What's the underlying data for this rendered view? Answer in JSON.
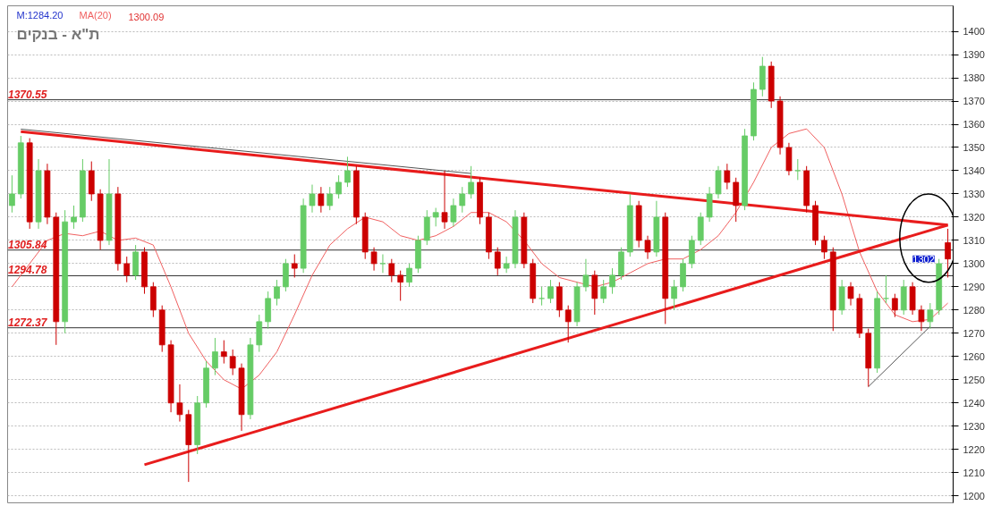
{
  "chart_data": {
    "type": "candlestick",
    "title": "ת\"א - בנקים",
    "annotations": [
      "M:1284.20",
      "1300.09",
      {
        "text": "1302",
        "y": 1302
      }
    ],
    "categories": [
      null,
      null,
      null,
      null,
      null,
      null,
      null,
      null,
      null,
      null,
      null,
      null,
      null,
      null,
      null,
      null,
      null,
      null,
      null,
      null,
      null,
      null,
      null,
      null,
      null,
      null,
      null,
      null,
      null,
      null,
      null,
      null,
      null,
      null,
      null,
      null,
      null,
      null,
      null,
      null,
      null,
      null,
      null,
      null,
      null,
      null,
      null,
      null,
      null,
      null,
      null,
      null,
      null,
      null,
      null,
      null,
      null,
      null,
      null,
      null,
      null,
      null,
      null,
      null,
      null,
      null,
      null,
      null,
      null,
      null,
      null,
      null,
      null,
      null,
      null,
      null,
      null,
      null,
      null,
      null,
      null,
      null,
      null,
      null,
      null,
      null,
      null,
      null,
      null,
      null,
      null,
      null,
      null,
      null,
      null,
      null,
      null,
      null,
      null,
      null,
      null,
      null,
      null,
      null,
      null,
      null,
      null
    ],
    "ohlc": [
      [
        1325,
        1338,
        1322,
        1330
      ],
      [
        1330,
        1355,
        1328,
        1352
      ],
      [
        1352,
        1354,
        1315,
        1318
      ],
      [
        1318,
        1345,
        1315,
        1340
      ],
      [
        1340,
        1343,
        1317,
        1320
      ],
      [
        1320,
        1322,
        1265,
        1275
      ],
      [
        1275,
        1323,
        1270,
        1318
      ],
      [
        1318,
        1325,
        1315,
        1320
      ],
      [
        1320,
        1345,
        1318,
        1340
      ],
      [
        1340,
        1344,
        1327,
        1330
      ],
      [
        1330,
        1332,
        1306,
        1310
      ],
      [
        1310,
        1345,
        1308,
        1330
      ],
      [
        1330,
        1333,
        1297,
        1300
      ],
      [
        1300,
        1303,
        1292,
        1295
      ],
      [
        1295,
        1308,
        1293,
        1305
      ],
      [
        1305,
        1307,
        1287,
        1290
      ],
      [
        1290,
        1292,
        1277,
        1280
      ],
      [
        1280,
        1282,
        1262,
        1265
      ],
      [
        1265,
        1267,
        1236,
        1240
      ],
      [
        1240,
        1248,
        1232,
        1235
      ],
      [
        1235,
        1237,
        1206,
        1222
      ],
      [
        1222,
        1243,
        1218,
        1240
      ],
      [
        1240,
        1258,
        1238,
        1255
      ],
      [
        1255,
        1268,
        1252,
        1262
      ],
      [
        1262,
        1267,
        1257,
        1260
      ],
      [
        1260,
        1263,
        1252,
        1255
      ],
      [
        1255,
        1257,
        1228,
        1235
      ],
      [
        1235,
        1268,
        1233,
        1265
      ],
      [
        1265,
        1278,
        1262,
        1275
      ],
      [
        1275,
        1288,
        1272,
        1285
      ],
      [
        1285,
        1293,
        1282,
        1290
      ],
      [
        1290,
        1302,
        1288,
        1300
      ],
      [
        1300,
        1304,
        1294,
        1298
      ],
      [
        1298,
        1328,
        1296,
        1325
      ],
      [
        1325,
        1334,
        1322,
        1330
      ],
      [
        1330,
        1333,
        1322,
        1325
      ],
      [
        1325,
        1333,
        1323,
        1330
      ],
      [
        1330,
        1338,
        1328,
        1335
      ],
      [
        1335,
        1346,
        1333,
        1340
      ],
      [
        1340,
        1342,
        1317,
        1320
      ],
      [
        1320,
        1322,
        1302,
        1305
      ],
      [
        1305,
        1307,
        1297,
        1300
      ],
      [
        1300,
        1304,
        1296,
        1300
      ],
      [
        1300,
        1302,
        1292,
        1295
      ],
      [
        1295,
        1297,
        1284,
        1292
      ],
      [
        1292,
        1300,
        1290,
        1298
      ],
      [
        1298,
        1312,
        1296,
        1310
      ],
      [
        1310,
        1323,
        1308,
        1320
      ],
      [
        1320,
        1324,
        1316,
        1322
      ],
      [
        1322,
        1340,
        1315,
        1318
      ],
      [
        1318,
        1328,
        1316,
        1325
      ],
      [
        1325,
        1333,
        1322,
        1330
      ],
      [
        1330,
        1342,
        1328,
        1335
      ],
      [
        1335,
        1337,
        1317,
        1320
      ],
      [
        1320,
        1322,
        1302,
        1305
      ],
      [
        1305,
        1307,
        1295,
        1298
      ],
      [
        1298,
        1303,
        1296,
        1300
      ],
      [
        1300,
        1323,
        1298,
        1320
      ],
      [
        1320,
        1322,
        1298,
        1300
      ],
      [
        1300,
        1302,
        1283,
        1285
      ],
      [
        1285,
        1290,
        1282,
        1285
      ],
      [
        1285,
        1293,
        1283,
        1290
      ],
      [
        1290,
        1292,
        1277,
        1280
      ],
      [
        1280,
        1282,
        1266,
        1275
      ],
      [
        1275,
        1292,
        1273,
        1290
      ],
      [
        1290,
        1302,
        1288,
        1295
      ],
      [
        1295,
        1297,
        1278,
        1285
      ],
      [
        1285,
        1293,
        1283,
        1290
      ],
      [
        1290,
        1298,
        1287,
        1295
      ],
      [
        1295,
        1307,
        1293,
        1305
      ],
      [
        1305,
        1330,
        1303,
        1325
      ],
      [
        1325,
        1327,
        1307,
        1310
      ],
      [
        1310,
        1312,
        1302,
        1305
      ],
      [
        1305,
        1327,
        1303,
        1320
      ],
      [
        1320,
        1322,
        1274,
        1285
      ],
      [
        1285,
        1293,
        1280,
        1290
      ],
      [
        1290,
        1302,
        1288,
        1300
      ],
      [
        1300,
        1312,
        1298,
        1310
      ],
      [
        1310,
        1322,
        1308,
        1320
      ],
      [
        1320,
        1333,
        1318,
        1330
      ],
      [
        1330,
        1342,
        1328,
        1340
      ],
      [
        1340,
        1343,
        1332,
        1335
      ],
      [
        1335,
        1337,
        1318,
        1325
      ],
      [
        1325,
        1358,
        1323,
        1355
      ],
      [
        1355,
        1378,
        1353,
        1375
      ],
      [
        1375,
        1389,
        1372,
        1385
      ],
      [
        1385,
        1387,
        1367,
        1370
      ],
      [
        1370,
        1372,
        1347,
        1350
      ],
      [
        1350,
        1352,
        1338,
        1340
      ],
      [
        1340,
        1345,
        1336,
        1340
      ],
      [
        1340,
        1342,
        1322,
        1325
      ],
      [
        1325,
        1327,
        1308,
        1310
      ],
      [
        1310,
        1312,
        1302,
        1305
      ],
      [
        1305,
        1307,
        1271,
        1280
      ],
      [
        1280,
        1293,
        1278,
        1290
      ],
      [
        1290,
        1292,
        1282,
        1285
      ],
      [
        1285,
        1287,
        1268,
        1270
      ],
      [
        1270,
        1272,
        1247,
        1255
      ],
      [
        1255,
        1288,
        1253,
        1285
      ],
      [
        1285,
        1295,
        1283,
        1285
      ],
      [
        1285,
        1287,
        1277,
        1280
      ],
      [
        1280,
        1293,
        1278,
        1290
      ],
      [
        1290,
        1292,
        1278,
        1280
      ],
      [
        1280,
        1282,
        1271,
        1275
      ],
      [
        1275,
        1283,
        1272,
        1280
      ],
      [
        1280,
        1302,
        1278,
        1300
      ],
      [
        1309,
        1315,
        1294,
        1302
      ]
    ],
    "colors": [
      "#66cc66",
      "#66cc66",
      "#cc0000",
      "#66cc66",
      "#cc0000",
      "#cc0000",
      "#66cc66",
      "#66cc66",
      "#66cc66",
      "#cc0000",
      "#cc0000",
      "#66cc66",
      "#cc0000",
      "#cc0000",
      "#66cc66",
      "#cc0000",
      "#cc0000",
      "#cc0000",
      "#cc0000",
      "#cc0000",
      "#cc0000",
      "#66cc66",
      "#66cc66",
      "#66cc66",
      "#cc0000",
      "#cc0000",
      "#cc0000",
      "#66cc66",
      "#66cc66",
      "#66cc66",
      "#66cc66",
      "#66cc66",
      "#cc0000",
      "#66cc66",
      "#66cc66",
      "#cc0000",
      "#66cc66",
      "#66cc66",
      "#66cc66",
      "#cc0000",
      "#cc0000",
      "#cc0000",
      "#66cc66",
      "#cc0000",
      "#cc0000",
      "#66cc66",
      "#66cc66",
      "#66cc66",
      "#66cc66",
      "#cc0000",
      "#66cc66",
      "#66cc66",
      "#66cc66",
      "#cc0000",
      "#cc0000",
      "#cc0000",
      "#66cc66",
      "#66cc66",
      "#cc0000",
      "#cc0000",
      "#66cc66",
      "#66cc66",
      "#cc0000",
      "#cc0000",
      "#66cc66",
      "#66cc66",
      "#cc0000",
      "#66cc66",
      "#66cc66",
      "#66cc66",
      "#66cc66",
      "#cc0000",
      "#cc0000",
      "#66cc66",
      "#cc0000",
      "#66cc66",
      "#66cc66",
      "#66cc66",
      "#66cc66",
      "#66cc66",
      "#66cc66",
      "#cc0000",
      "#cc0000",
      "#66cc66",
      "#66cc66",
      "#66cc66",
      "#cc0000",
      "#cc0000",
      "#cc0000",
      "#66cc66",
      "#cc0000",
      "#cc0000",
      "#cc0000",
      "#cc0000",
      "#66cc66",
      "#cc0000",
      "#cc0000",
      "#cc0000",
      "#66cc66",
      "#66cc66",
      "#cc0000",
      "#66cc66",
      "#cc0000",
      "#cc0000",
      "#66cc66",
      "#66cc66",
      "#cc0000"
    ],
    "series": [
      {
        "type": "line",
        "name": "MA(20)",
        "color": "#f06060",
        "values": [
          1290,
          null,
          1300,
          null,
          1310,
          null,
          1313,
          null,
          1312,
          null,
          1314,
          null,
          1310,
          null,
          1311,
          null,
          1308,
          null,
          1290,
          null,
          1270,
          null,
          1258,
          null,
          1250,
          null,
          1246,
          null,
          1252,
          null,
          1262,
          null,
          1278,
          null,
          1295,
          null,
          1308,
          null,
          1315,
          null,
          1320,
          null,
          1318,
          null,
          1312,
          null,
          1310,
          null,
          1312,
          null,
          1316,
          null,
          1322,
          null,
          1322,
          null,
          1318,
          null,
          1310,
          null,
          1300,
          null,
          1294,
          null,
          1292,
          null,
          1290,
          null,
          1292,
          null,
          1296,
          null,
          1300,
          null,
          1302,
          null,
          1302,
          null,
          1306,
          null,
          1312,
          null,
          1322,
          null,
          1335,
          null,
          1350,
          null,
          1356,
          null,
          1358,
          null,
          1350,
          null,
          1330,
          null,
          1305,
          null,
          1288,
          null,
          1278,
          null,
          1275,
          null,
          1276,
          null,
          1283
        ]
      },
      {
        "type": "line",
        "color": "#e81c1c",
        "values": [
          null,
          1356.8,
          null,
          null,
          null,
          null,
          null,
          null,
          null,
          null,
          null,
          null,
          null,
          null,
          null,
          null,
          null,
          null,
          null,
          null,
          null,
          null,
          null,
          null,
          null,
          null,
          null,
          null,
          null,
          null,
          null,
          null,
          null,
          null,
          null,
          null,
          null,
          null,
          null,
          null,
          null,
          null,
          null,
          null,
          null,
          null,
          null,
          null,
          null,
          null,
          null,
          null,
          null,
          null,
          null,
          null,
          null,
          null,
          null,
          null,
          null,
          null,
          null,
          null,
          null,
          null,
          null,
          null,
          null,
          null,
          null,
          null,
          null,
          null,
          null,
          null,
          null,
          null,
          null,
          null,
          null,
          null,
          null,
          null,
          null,
          null,
          null,
          null,
          null,
          null,
          null,
          null,
          null,
          null,
          null,
          null,
          null,
          null,
          null,
          null,
          null,
          null,
          null,
          null,
          null,
          null,
          1316.6
        ]
      },
      {
        "type": "line",
        "color": "#e81c1c",
        "values": [
          null,
          null,
          null,
          null,
          null,
          null,
          null,
          null,
          null,
          null,
          null,
          null,
          null,
          null,
          null,
          1213.4,
          null,
          null,
          null,
          null,
          null,
          null,
          null,
          null,
          null,
          null,
          null,
          null,
          null,
          null,
          null,
          null,
          null,
          null,
          null,
          null,
          null,
          null,
          null,
          null,
          null,
          null,
          null,
          null,
          null,
          null,
          null,
          null,
          null,
          null,
          null,
          null,
          null,
          null,
          null,
          null,
          null,
          null,
          null,
          null,
          null,
          null,
          null,
          null,
          null,
          null,
          null,
          null,
          null,
          null,
          null,
          null,
          null,
          null,
          null,
          null,
          null,
          null,
          null,
          null,
          null,
          null,
          null,
          null,
          null,
          null,
          null,
          null,
          null,
          null,
          null,
          null,
          null,
          null,
          null,
          null,
          null,
          null,
          null,
          null,
          null,
          null,
          null,
          null,
          null,
          null,
          1316.6
        ]
      },
      {
        "type": "line",
        "color": "#555555",
        "values": [
          null,
          1357.9,
          null,
          null,
          null,
          null,
          null,
          null,
          null,
          null,
          null,
          null,
          null,
          null,
          null,
          null,
          null,
          null,
          null,
          null,
          null,
          null,
          null,
          null,
          null,
          null,
          null,
          null,
          null,
          null,
          null,
          null,
          null,
          null,
          null,
          null,
          null,
          null,
          null,
          null,
          null,
          null,
          null,
          null,
          null,
          null,
          null,
          null,
          null,
          null,
          null,
          null,
          1338.8,
          null,
          null,
          null,
          null,
          null,
          null,
          null,
          null,
          null,
          null,
          null,
          null,
          null,
          null,
          null,
          null,
          null,
          null,
          null,
          null,
          null,
          null,
          null,
          null,
          null,
          null,
          null,
          null,
          null,
          null,
          null,
          null,
          null,
          null,
          null,
          null,
          null,
          null,
          null,
          null,
          null,
          null,
          null,
          null,
          null,
          null,
          null,
          null,
          null,
          null,
          null,
          null,
          null,
          null
        ]
      },
      {
        "type": "line",
        "color": "#555555",
        "values": [
          null,
          null,
          null,
          null,
          null,
          null,
          null,
          null,
          null,
          null,
          null,
          null,
          null,
          null,
          null,
          null,
          null,
          null,
          null,
          null,
          null,
          null,
          null,
          null,
          null,
          null,
          null,
          null,
          null,
          null,
          null,
          null,
          null,
          null,
          null,
          null,
          null,
          null,
          null,
          null,
          null,
          null,
          null,
          null,
          null,
          null,
          null,
          null,
          null,
          null,
          null,
          null,
          null,
          null,
          null,
          null,
          null,
          null,
          null,
          null,
          null,
          null,
          null,
          null,
          null,
          null,
          null,
          null,
          null,
          null,
          null,
          null,
          null,
          null,
          null,
          null,
          null,
          null,
          null,
          null,
          null,
          null,
          null,
          null,
          null,
          null,
          null,
          null,
          null,
          null,
          null,
          null,
          null,
          null,
          null,
          null,
          null,
          1247,
          null,
          null,
          null,
          null,
          null,
          null,
          1273,
          null,
          null
        ]
      }
    ],
    "ref_lines": [
      {
        "axis": "y",
        "value": 1370.55,
        "label": "1370.55"
      },
      {
        "axis": "y",
        "value": 1305.84,
        "label": "1305.84"
      },
      {
        "axis": "y",
        "value": 1294.78,
        "label": "1294.78"
      },
      {
        "axis": "y",
        "value": 1272.37,
        "label": "1272.37"
      }
    ],
    "ylim": [
      1197,
      1411
    ],
    "yticks": [
      1200,
      1210,
      1220,
      1230,
      1240,
      1250,
      1260,
      1270,
      1280,
      1290,
      1300,
      1310,
      1320,
      1330,
      1340,
      1350,
      1360,
      1370,
      1380,
      1390,
      1400
    ],
    "grid": "y",
    "tick_labels": "y"
  }
}
